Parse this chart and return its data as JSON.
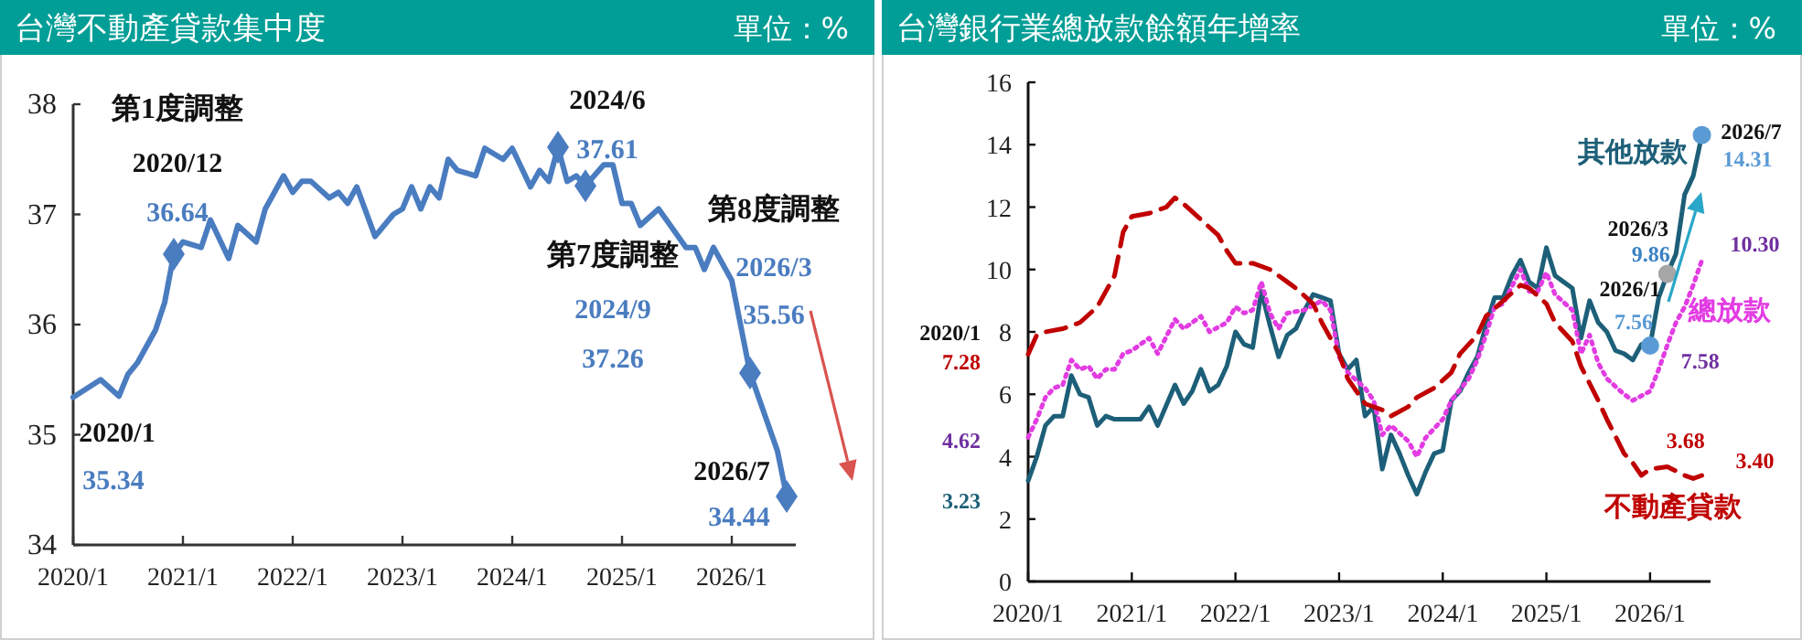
{
  "chart_data": [
    {
      "type": "line",
      "title": "台灣不動產貸款集中度",
      "subtitle": "單位：%",
      "legend": false,
      "grid": false,
      "xlim": [
        "2020-01",
        "2026-08"
      ],
      "ylim": [
        34,
        38
      ],
      "yticks": [
        34,
        35,
        36,
        37,
        38
      ],
      "xticks": [
        {
          "value": "2020-01",
          "label": "2020/1"
        },
        {
          "value": "2021-01",
          "label": "2021/1"
        },
        {
          "value": "2022-01",
          "label": "2022/1"
        },
        {
          "value": "2023-01",
          "label": "2023/1"
        },
        {
          "value": "2024-01",
          "label": "2024/1"
        },
        {
          "value": "2025-01",
          "label": "2025/1"
        },
        {
          "value": "2026-01",
          "label": "2026/1"
        }
      ],
      "series": [
        {
          "color": "#4a7cc0",
          "x": [
            "2020-01",
            "2020-04",
            "2020-06",
            "2020-07",
            "2020-08",
            "2020-10",
            "2020-11",
            "2020-12",
            "2021-01",
            "2021-03",
            "2021-04",
            "2021-06",
            "2021-07",
            "2021-09",
            "2021-10",
            "2021-12",
            "2022-01",
            "2022-02",
            "2022-03",
            "2022-05",
            "2022-06",
            "2022-07",
            "2022-08",
            "2022-10",
            "2022-12",
            "2023-01",
            "2023-02",
            "2023-03",
            "2023-04",
            "2023-05",
            "2023-06",
            "2023-07",
            "2023-09",
            "2023-10",
            "2023-12",
            "2024-01",
            "2024-03",
            "2024-04",
            "2024-05",
            "2024-06",
            "2024-07",
            "2024-08",
            "2024-09",
            "2024-11",
            "2024-12",
            "2025-01",
            "2025-02",
            "2025-03",
            "2025-05",
            "2025-08",
            "2025-09",
            "2025-10",
            "2025-11",
            "2026-01",
            "2026-03",
            "2026-06",
            "2026-07"
          ],
          "values": [
            35.34,
            35.5,
            35.35,
            35.55,
            35.65,
            35.95,
            36.2,
            36.64,
            36.75,
            36.7,
            36.95,
            36.6,
            36.9,
            36.75,
            37.05,
            37.35,
            37.2,
            37.3,
            37.3,
            37.15,
            37.2,
            37.1,
            37.25,
            36.8,
            37.0,
            37.05,
            37.25,
            37.05,
            37.25,
            37.15,
            37.5,
            37.4,
            37.35,
            37.6,
            37.5,
            37.6,
            37.25,
            37.4,
            37.3,
            37.61,
            37.3,
            37.35,
            37.26,
            37.45,
            37.45,
            37.1,
            37.1,
            36.9,
            37.05,
            36.7,
            36.7,
            36.5,
            36.7,
            36.4,
            35.56,
            34.85,
            34.44
          ]
        },
        {
          "type": "scatter",
          "marker": "diamond",
          "color": "#4a7cc0",
          "x": [
            "2020-12",
            "2024-06",
            "2024-09",
            "2026-03",
            "2026-07"
          ],
          "values": [
            36.64,
            37.61,
            37.26,
            35.56,
            34.44
          ]
        }
      ],
      "annotations": [
        "第1度調整",
        {
          "text": "2020/12",
          "x": "2020-12",
          "y": 36.64
        },
        {
          "text": "36.64",
          "x": "2020-12",
          "y": 36.64
        },
        {
          "text": "2024/6",
          "x": "2024-06",
          "y": 37.61
        },
        {
          "text": "37.61",
          "x": "2024-06",
          "y": 37.61
        },
        "第7度調整",
        "2024/9",
        "37.26",
        "第8度調整",
        "2026/3",
        {
          "text": "35.56",
          "x": "2026-03",
          "y": 35.56
        },
        {
          "text": "2026/7",
          "x": "2026-07",
          "y": 34.44
        },
        {
          "text": "34.44",
          "x": "2026-07",
          "y": 34.44
        },
        {
          "text": "2020/1",
          "x": "2020-01",
          "y": 35.34
        },
        {
          "text": "35.34",
          "x": "2020-01",
          "y": 35.34
        }
      ]
    },
    {
      "type": "line",
      "title": "台灣銀行業總放款餘額年增率",
      "subtitle": "單位：%",
      "legend": false,
      "grid": false,
      "xlim": [
        "2020-01",
        "2026-08"
      ],
      "ylim": [
        0,
        16
      ],
      "yticks": [
        0,
        2,
        4,
        6,
        8,
        10,
        12,
        14,
        16
      ],
      "xticks": [
        {
          "value": "2020-01",
          "label": "2020/1"
        },
        {
          "value": "2021-01",
          "label": "2021/1"
        },
        {
          "value": "2022-01",
          "label": "2022/1"
        },
        {
          "value": "2023-01",
          "label": "2023/1"
        },
        {
          "value": "2024-01",
          "label": "2024/1"
        },
        {
          "value": "2025-01",
          "label": "2025/1"
        },
        {
          "value": "2026-01",
          "label": "2026/1"
        }
      ],
      "series": [
        {
          "name": "其他放款",
          "color": "#1d5f78",
          "line_style": "solid",
          "x": [
            "2020-01",
            "2020-02",
            "2020-03",
            "2020-04",
            "2020-05",
            "2020-06",
            "2020-07",
            "2020-08",
            "2020-09",
            "2020-10",
            "2020-11",
            "2020-12",
            "2021-02",
            "2021-03",
            "2021-04",
            "2021-06",
            "2021-07",
            "2021-08",
            "2021-09",
            "2021-10",
            "2021-11",
            "2021-12",
            "2022-01",
            "2022-02",
            "2022-03",
            "2022-04",
            "2022-05",
            "2022-06",
            "2022-07",
            "2022-08",
            "2022-09",
            "2022-10",
            "2022-11",
            "2022-12",
            "2023-01",
            "2023-02",
            "2023-03",
            "2023-04",
            "2023-05",
            "2023-06",
            "2023-07",
            "2023-08",
            "2023-09",
            "2023-10",
            "2023-11",
            "2023-12",
            "2024-01",
            "2024-02",
            "2024-03",
            "2024-04",
            "2024-05",
            "2024-06",
            "2024-07",
            "2024-08",
            "2024-09",
            "2024-10",
            "2024-11",
            "2024-12",
            "2025-01",
            "2025-02",
            "2025-03",
            "2025-04",
            "2025-05",
            "2025-06",
            "2025-07",
            "2025-08",
            "2025-09",
            "2025-10",
            "2025-11",
            "2025-12",
            "2026-01",
            "2026-02",
            "2026-03",
            "2026-04",
            "2026-05",
            "2026-06",
            "2026-07"
          ],
          "values": [
            3.23,
            4.0,
            5.0,
            5.3,
            5.3,
            6.6,
            6.0,
            5.9,
            5.0,
            5.3,
            5.2,
            5.2,
            5.2,
            5.6,
            5.0,
            6.3,
            5.7,
            6.1,
            6.8,
            6.1,
            6.3,
            6.9,
            8.0,
            7.6,
            7.5,
            9.3,
            8.2,
            7.2,
            7.9,
            8.1,
            8.7,
            9.2,
            9.1,
            9.0,
            7.3,
            6.8,
            7.1,
            5.3,
            5.6,
            3.6,
            4.7,
            4.1,
            3.4,
            2.8,
            3.5,
            4.1,
            4.2,
            5.8,
            6.1,
            6.7,
            7.2,
            8.2,
            9.1,
            9.1,
            9.8,
            10.3,
            9.6,
            9.4,
            10.7,
            9.8,
            9.6,
            9.4,
            7.8,
            9.0,
            8.3,
            8.0,
            7.4,
            7.3,
            7.1,
            7.6,
            7.56,
            9.1,
            9.86,
            10.5,
            12.4,
            13.0,
            14.31
          ]
        },
        {
          "name": "總放款",
          "color": "#e23ce2",
          "line_style": "dotted",
          "x": [
            "2020-01",
            "2020-02",
            "2020-03",
            "2020-04",
            "2020-05",
            "2020-06",
            "2020-07",
            "2020-08",
            "2020-09",
            "2020-10",
            "2020-11",
            "2020-12",
            "2021-01",
            "2021-03",
            "2021-04",
            "2021-06",
            "2021-07",
            "2021-09",
            "2021-10",
            "2021-12",
            "2022-01",
            "2022-02",
            "2022-03",
            "2022-04",
            "2022-05",
            "2022-06",
            "2022-07",
            "2022-09",
            "2022-11",
            "2022-12",
            "2023-01",
            "2023-02",
            "2023-04",
            "2023-05",
            "2023-06",
            "2023-07",
            "2023-09",
            "2023-10",
            "2023-11",
            "2024-01",
            "2024-02",
            "2024-04",
            "2024-05",
            "2024-06",
            "2024-07",
            "2024-08",
            "2024-10",
            "2024-11",
            "2024-12",
            "2025-01",
            "2025-02",
            "2025-04",
            "2025-05",
            "2025-06",
            "2025-07",
            "2025-08",
            "2025-10",
            "2025-11",
            "2026-01",
            "2026-02",
            "2026-03",
            "2026-04",
            "2026-05",
            "2026-06",
            "2026-07"
          ],
          "values": [
            4.62,
            5.2,
            5.9,
            6.2,
            6.3,
            7.1,
            6.8,
            6.9,
            6.5,
            6.8,
            6.8,
            7.3,
            7.4,
            7.8,
            7.3,
            8.4,
            8.1,
            8.5,
            8.0,
            8.3,
            8.8,
            8.6,
            8.7,
            9.6,
            8.6,
            8.1,
            8.6,
            8.7,
            9.0,
            8.7,
            7.2,
            6.7,
            6.2,
            5.8,
            4.7,
            5.0,
            4.5,
            4.0,
            4.6,
            5.2,
            5.8,
            6.5,
            7.1,
            7.9,
            8.8,
            8.9,
            10.0,
            9.3,
            9.3,
            9.9,
            9.2,
            8.7,
            7.3,
            7.9,
            7.0,
            6.5,
            6.0,
            5.8,
            6.1,
            6.8,
            7.58,
            8.3,
            8.8,
            9.5,
            10.3
          ]
        },
        {
          "name": "不動產貸款",
          "color": "#c00000",
          "line_style": "dashed",
          "x": [
            "2020-01",
            "2020-02",
            "2020-03",
            "2020-05",
            "2020-07",
            "2020-09",
            "2020-11",
            "2020-12",
            "2021-01",
            "2021-03",
            "2021-05",
            "2021-06",
            "2021-07",
            "2021-09",
            "2021-11",
            "2021-12",
            "2022-01",
            "2022-03",
            "2022-05",
            "2022-07",
            "2022-08",
            "2022-10",
            "2022-11",
            "2023-01",
            "2023-02",
            "2023-04",
            "2023-06",
            "2023-07",
            "2023-09",
            "2023-10",
            "2023-12",
            "2024-02",
            "2024-03",
            "2024-05",
            "2024-06",
            "2024-08",
            "2024-10",
            "2024-11",
            "2025-01",
            "2025-02",
            "2025-04",
            "2025-05",
            "2025-07",
            "2025-08",
            "2025-10",
            "2025-11",
            "2025-12",
            "2026-01",
            "2026-03",
            "2026-05",
            "2026-06",
            "2026-07"
          ],
          "values": [
            7.28,
            7.9,
            8.0,
            8.1,
            8.3,
            8.8,
            9.8,
            11.2,
            11.7,
            11.8,
            12.0,
            12.3,
            12.1,
            11.6,
            11.1,
            10.6,
            10.2,
            10.2,
            10.0,
            9.6,
            9.4,
            8.9,
            8.3,
            7.3,
            6.5,
            5.7,
            5.5,
            5.3,
            5.6,
            5.9,
            6.2,
            6.7,
            7.3,
            7.9,
            8.5,
            9.0,
            9.5,
            9.4,
            8.9,
            8.3,
            7.7,
            6.9,
            5.8,
            5.2,
            4.1,
            3.8,
            3.4,
            3.6,
            3.68,
            3.4,
            3.3,
            3.4
          ]
        },
        {
          "type": "scatter",
          "marker": "circle",
          "x": [
            "2026-01",
            "2026-03",
            "2026-07"
          ],
          "values": [
            7.56,
            9.86,
            14.31
          ],
          "colors": [
            "#5b9bd5",
            "#a6a6a6",
            "#5b9bd5"
          ]
        }
      ],
      "annotations": [
        {
          "text": "2020/1",
          "x": "2020-01",
          "y": 7.28
        },
        {
          "text": "7.28",
          "x": "2020-01",
          "y": 7.28
        },
        {
          "text": "4.62",
          "x": "2020-01",
          "y": 4.62
        },
        {
          "text": "3.23",
          "x": "2020-01",
          "y": 3.23
        },
        {
          "text": "2026/1",
          "x": "2026-01",
          "y": 7.56
        },
        {
          "text": "7.56",
          "x": "2026-01",
          "y": 7.56
        },
        {
          "text": "2026/3",
          "x": "2026-03",
          "y": 9.86
        },
        {
          "text": "9.86",
          "x": "2026-03",
          "y": 9.86
        },
        {
          "text": "2026/7",
          "x": "2026-07",
          "y": 14.31
        },
        {
          "text": "14.31",
          "x": "2026-07",
          "y": 14.31
        },
        {
          "text": "10.30",
          "x": "2026-07",
          "y": 10.3
        },
        {
          "text": "7.58",
          "x": "2026-03",
          "y": 7.58
        },
        {
          "text": "3.68",
          "x": "2026-03",
          "y": 3.68
        },
        {
          "text": "3.40",
          "x": "2026-07",
          "y": 3.4
        }
      ]
    }
  ]
}
